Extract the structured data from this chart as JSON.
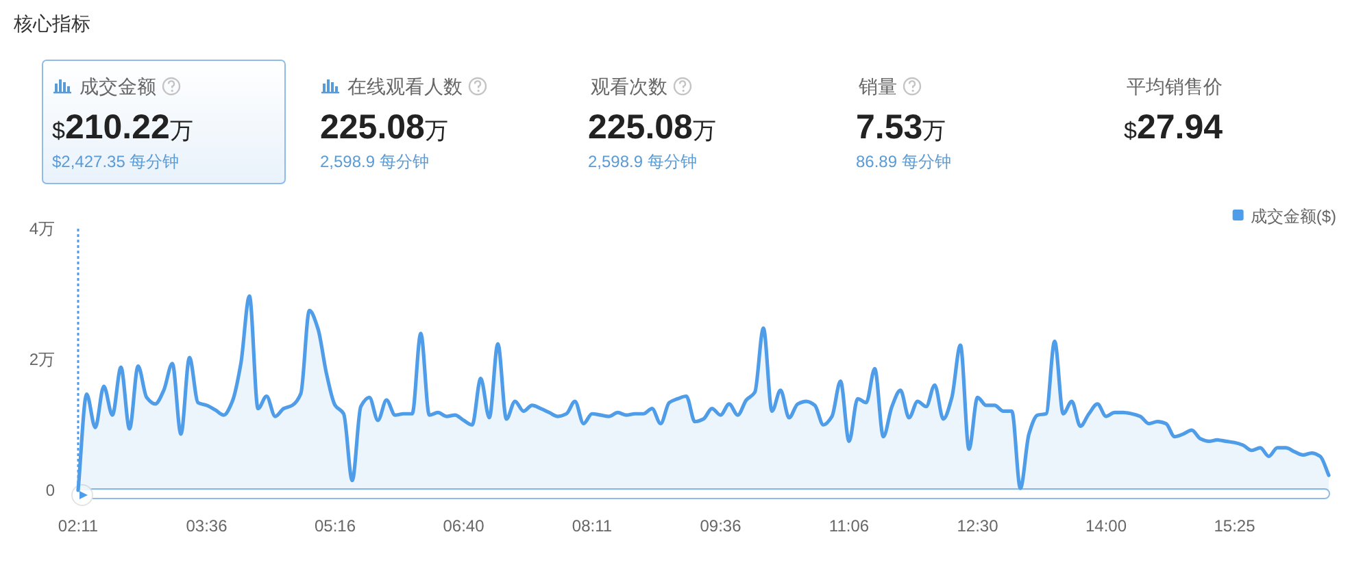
{
  "chart_data": [
    {
      "type": "other",
      "title": "核心指标",
      "categories": [
        "成交金额",
        "在线观看人数",
        "观看次数",
        "销量",
        "平均销售价"
      ],
      "value_labels": [
        "$210.22万",
        "225.08万",
        "225.08万",
        "7.53万",
        "$27.94"
      ],
      "annotations": [
        "$2,427.35 每分钟",
        "2,598.9 每分钟",
        "2,598.9 每分钟",
        "86.89 每分钟"
      ]
    },
    {
      "type": "area",
      "categories": [
        "02:11",
        null,
        null,
        null,
        null,
        null,
        null,
        null,
        null,
        null,
        null,
        null,
        null,
        null,
        null,
        "03:36",
        null,
        null,
        null,
        null,
        null,
        null,
        null,
        null,
        null,
        null,
        null,
        null,
        null,
        null,
        "05:16",
        null,
        null,
        null,
        null,
        null,
        null,
        null,
        null,
        null,
        null,
        null,
        null,
        null,
        null,
        "06:40",
        null,
        null,
        null,
        null,
        null,
        null,
        null,
        null,
        null,
        null,
        null,
        null,
        null,
        null,
        "08:11",
        null,
        null,
        null,
        null,
        null,
        null,
        null,
        null,
        null,
        null,
        null,
        null,
        null,
        null,
        "09:36",
        null,
        null,
        null,
        null,
        null,
        null,
        null,
        null,
        null,
        null,
        null,
        null,
        null,
        null,
        "11:06",
        null,
        null,
        null,
        null,
        null,
        null,
        null,
        null,
        null,
        null,
        null,
        null,
        null,
        null,
        "12:30",
        null,
        null,
        null,
        null,
        null,
        null,
        null,
        null,
        null,
        null,
        null,
        null,
        null,
        null,
        "14:00",
        null,
        null,
        null,
        null,
        null,
        null,
        null,
        null,
        null,
        null,
        null,
        null,
        null,
        null,
        "15:25",
        null,
        null,
        null,
        null,
        null,
        null,
        null,
        null,
        null,
        null,
        null
      ],
      "series": [
        {
          "name": "成交金额($)",
          "color": "#4f9de8",
          "values": [
            0,
            1.47,
            0.96,
            1.59,
            1.15,
            1.88,
            0.94,
            1.9,
            1.42,
            1.32,
            1.53,
            1.94,
            0.86,
            2.03,
            1.34,
            1.3,
            1.23,
            1.15,
            1.36,
            1.94,
            2.97,
            1.25,
            1.44,
            1.13,
            1.25,
            1.3,
            1.48,
            2.75,
            2.47,
            1.78,
            1.3,
            1.17,
            0.15,
            1.28,
            1.42,
            1.07,
            1.38,
            1.15,
            1.17,
            1.17,
            2.4,
            1.15,
            1.19,
            1.13,
            1.15,
            1.07,
            1.0,
            1.71,
            1.11,
            2.24,
            1.09,
            1.36,
            1.21,
            1.3,
            1.25,
            1.19,
            1.13,
            1.17,
            1.36,
            1.02,
            1.17,
            1.15,
            1.13,
            1.19,
            1.15,
            1.17,
            1.17,
            1.25,
            1.02,
            1.34,
            1.4,
            1.44,
            1.05,
            1.09,
            1.25,
            1.15,
            1.32,
            1.15,
            1.38,
            1.5,
            2.48,
            1.21,
            1.53,
            1.11,
            1.32,
            1.36,
            1.3,
            1.0,
            1.13,
            1.67,
            0.75,
            1.4,
            1.34,
            1.86,
            0.82,
            1.28,
            1.53,
            1.11,
            1.36,
            1.28,
            1.61,
            1.09,
            1.42,
            2.22,
            0.63,
            1.42,
            1.3,
            1.3,
            1.21,
            1.21,
            0.03,
            0.86,
            1.15,
            1.17,
            2.28,
            1.17,
            1.36,
            0.98,
            1.17,
            1.32,
            1.13,
            1.19,
            1.19,
            1.17,
            1.13,
            1.02,
            1.05,
            1.02,
            0.82,
            0.86,
            0.92,
            0.79,
            0.75,
            0.77,
            0.75,
            0.73,
            0.69,
            0.61,
            0.65,
            0.52,
            0.65,
            0.65,
            0.59,
            0.54,
            0.57,
            0.52,
            0.23
          ]
        }
      ],
      "ylim": [
        0,
        4
      ],
      "yticks": [
        0,
        {
          "value": 2,
          "label": "2万"
        },
        {
          "value": 4,
          "label": "4万"
        }
      ],
      "legend": "top right",
      "ref_lines": [
        {
          "axis": "x",
          "value": "02:11",
          "color": "#4f9de8",
          "line_style": "dotted"
        }
      ]
    }
  ]
}
